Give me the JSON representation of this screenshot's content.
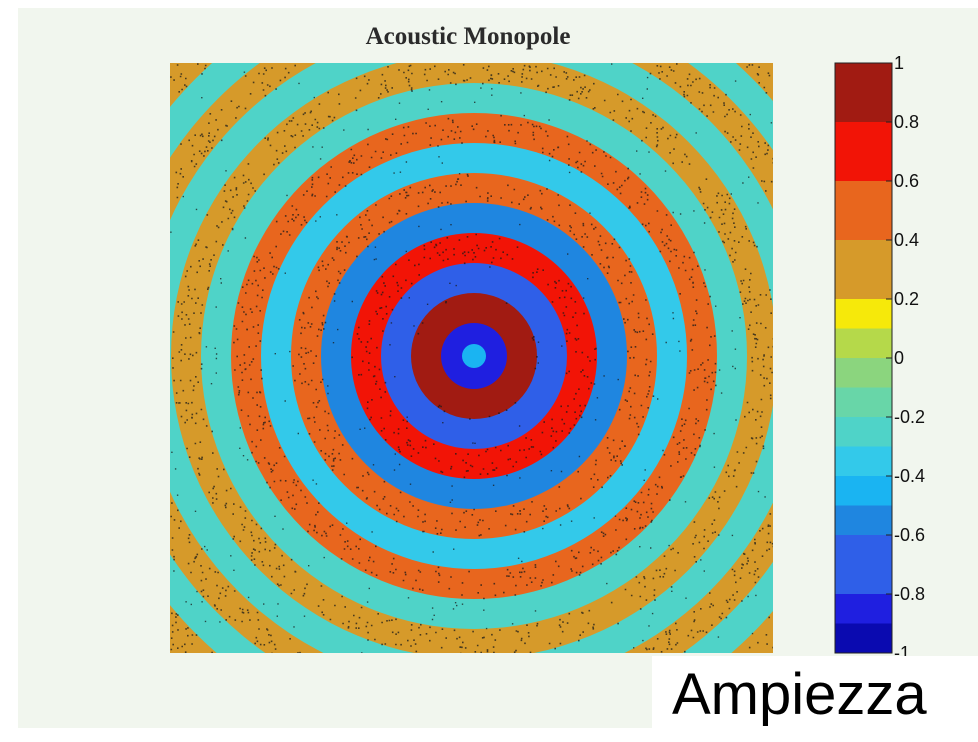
{
  "chart_data": {
    "type": "heatmap",
    "title": "Acoustic Monopole",
    "xlabel": "",
    "ylabel": "",
    "grid": false,
    "colorbar": {
      "placement": "right",
      "min": -1,
      "max": 1,
      "tick_values": [
        1,
        0.8,
        0.6,
        0.4,
        0.2,
        0,
        -0.2,
        -0.4,
        -0.6,
        -0.8,
        -1
      ],
      "tick_labels": [
        "1",
        "0.8",
        "0.6",
        "0.4",
        "0.2",
        "0",
        "-0.2",
        "-0.4",
        "-0.6",
        "-0.8",
        "-1"
      ],
      "levels": [
        {
          "from": 0.8,
          "to": 1.0,
          "color": "#a11b12"
        },
        {
          "from": 0.6,
          "to": 0.8,
          "color": "#f21406"
        },
        {
          "from": 0.4,
          "to": 0.6,
          "color": "#e8661e"
        },
        {
          "from": 0.2,
          "to": 0.4,
          "color": "#d69a2a"
        },
        {
          "from": 0.1,
          "to": 0.2,
          "color": "#f6e90a"
        },
        {
          "from": 0.0,
          "to": 0.1,
          "color": "#b5d94a"
        },
        {
          "from": -0.1,
          "to": 0.0,
          "color": "#8bd57e"
        },
        {
          "from": -0.2,
          "to": -0.1,
          "color": "#68d6a8"
        },
        {
          "from": -0.3,
          "to": -0.2,
          "color": "#4fd3c8"
        },
        {
          "from": -0.4,
          "to": -0.3,
          "color": "#33c9ea"
        },
        {
          "from": -0.5,
          "to": -0.4,
          "color": "#1ab4f2"
        },
        {
          "from": -0.6,
          "to": -0.5,
          "color": "#1f86e0"
        },
        {
          "from": -0.8,
          "to": -0.6,
          "color": "#2f5fe8"
        },
        {
          "from": -0.9,
          "to": -0.8,
          "color": "#1f1fe0"
        },
        {
          "from": -1.0,
          "to": -0.9,
          "color": "#0a0ab0"
        }
      ]
    },
    "field": {
      "description_model": "concentric rings",
      "ring_values_center_outward": [
        -0.9,
        0.9,
        -0.8,
        0.7,
        -0.6,
        0.5,
        -0.4,
        0.4,
        -0.3,
        0.3,
        -0.3,
        0.3,
        -0.3,
        0.3
      ]
    }
  },
  "caption": {
    "text": "Ampiezza"
  },
  "colors": {
    "figure_background": "#f1f6ee",
    "page_background": "#ffffff",
    "speckle": "#1a1a1a"
  }
}
